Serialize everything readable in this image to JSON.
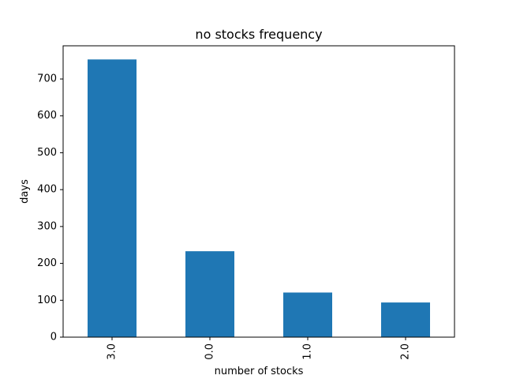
{
  "chart_data": {
    "type": "bar",
    "title": "no stocks frequency",
    "xlabel": "number of stocks",
    "ylabel": "days",
    "categories": [
      "3.0",
      "0.0",
      "1.0",
      "2.0"
    ],
    "values": [
      753,
      233,
      121,
      94
    ],
    "ylim": [
      0,
      790
    ],
    "yticks": [
      0,
      100,
      200,
      300,
      400,
      500,
      600,
      700
    ],
    "bar_color": "#1f77b4",
    "grid": false
  }
}
